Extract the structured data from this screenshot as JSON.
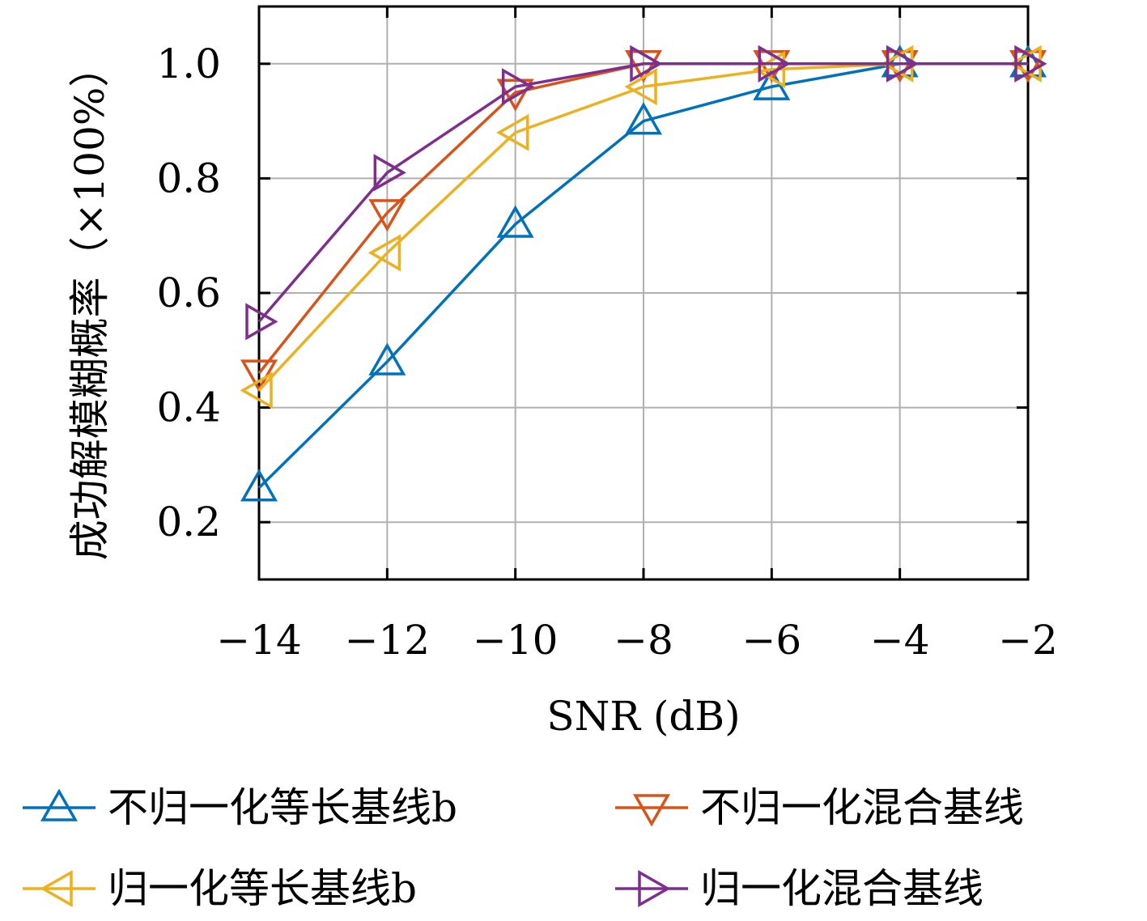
{
  "chart_data": {
    "type": "line",
    "xlabel": "SNR (dB)",
    "ylabel": "成功解模糊概率（×100%）",
    "xlim": [
      -14,
      -2
    ],
    "ylim": [
      0.1,
      1.1
    ],
    "x": [
      -14,
      -12,
      -10,
      -8,
      -6,
      -4,
      -2
    ],
    "x_tick_labels": [
      "−14",
      "−12",
      "−10",
      "−8",
      "−6",
      "−4",
      "−2"
    ],
    "y_ticks": [
      0.2,
      0.4,
      0.6,
      0.8,
      1.0
    ],
    "y_tick_labels": [
      "0.2",
      "0.4",
      "0.6",
      "0.8",
      "1.0"
    ],
    "grid": true,
    "legend_position": "bottom",
    "series": [
      {
        "name": "不归一化等长基线b",
        "color": "#0072BD",
        "marker": "triangle-up",
        "values": [
          0.26,
          0.48,
          0.72,
          0.9,
          0.96,
          1.0,
          1.0
        ]
      },
      {
        "name": "不归一化混合基线",
        "color": "#D95319",
        "marker": "triangle-down",
        "values": [
          0.46,
          0.74,
          0.95,
          1.0,
          1.0,
          1.0,
          1.0
        ]
      },
      {
        "name": "归一化等长基线b",
        "color": "#EDB120",
        "marker": "triangle-left",
        "values": [
          0.43,
          0.67,
          0.88,
          0.96,
          0.99,
          1.0,
          1.0
        ]
      },
      {
        "name": "归一化混合基线",
        "color": "#7E2F8E",
        "marker": "triangle-right",
        "values": [
          0.55,
          0.81,
          0.96,
          1.0,
          1.0,
          1.0,
          1.0
        ]
      }
    ]
  }
}
